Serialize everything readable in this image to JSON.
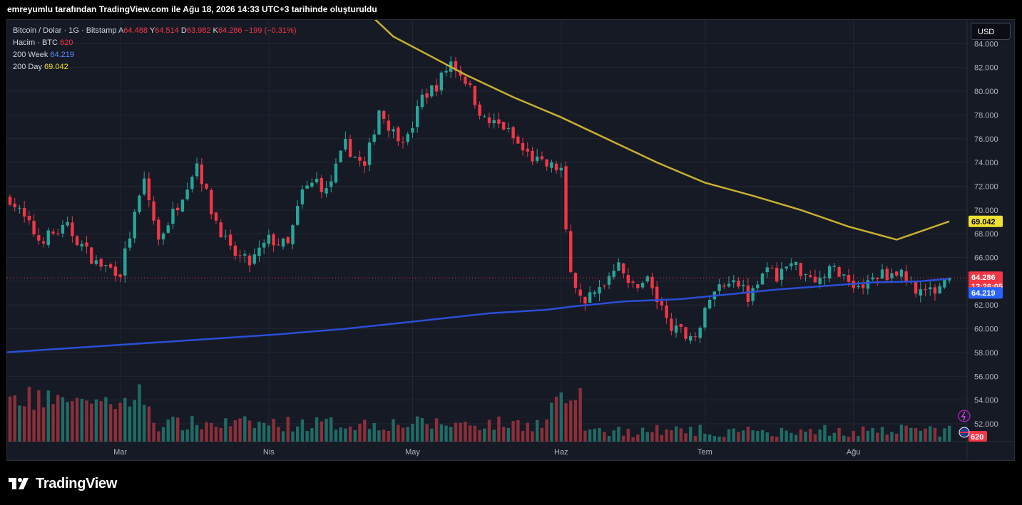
{
  "top_note": "emreyumlu tarafından TradingView.com ile Ağu 18, 2026 14:33 UTC+3 tarihinde oluşturuldu",
  "legend": {
    "symbol": "Bitcoin / Dolar · 1G · Bitstamp",
    "open_label": "A",
    "open": "64.488",
    "high_label": "Y",
    "high": "64.514",
    "low_label": "D",
    "low": "63.982",
    "close_label": "K",
    "close": "64.286",
    "change": "−199 (−0,31%)",
    "volume_label": "Hacim · BTC",
    "volume": "620",
    "ma200w_label": "200 Week",
    "ma200w": "64.219",
    "ma200d_label": "200 Day",
    "ma200d": "69.042"
  },
  "currency_button": "USD",
  "brand": {
    "name": "TradingView",
    "logo_icon": "tradingview-logo-icon"
  },
  "colors": {
    "up": "#26a69a",
    "down": "#f23645",
    "vol_up": "#1f6b65",
    "vol_down": "#8c2f39",
    "ma200w": "#2a4fd6",
    "ma200d": "#c8b030",
    "grid": "#232733",
    "text": "#b2b5be"
  },
  "price_tags": {
    "ma200d": "69.042",
    "last": "64.286",
    "countdown": "12:26:05",
    "ma200w": "64.219",
    "volume": "620"
  },
  "chart_data": {
    "type": "candlestick",
    "x_tick_labels": [
      "Mar",
      "Nis",
      "May",
      "Haz",
      "Tem",
      "Ağu"
    ],
    "y_tick_labels": [
      "52.000",
      "54.000",
      "56.000",
      "58.000",
      "60.000",
      "62.000",
      "64.000",
      "66.000",
      "68.000",
      "70.000",
      "72.000",
      "74.000",
      "76.000",
      "78.000",
      "80.000",
      "82.000",
      "84.000"
    ],
    "y_ticks": [
      52000,
      54000,
      56000,
      58000,
      60000,
      62000,
      64000,
      66000,
      68000,
      70000,
      72000,
      74000,
      76000,
      78000,
      80000,
      82000,
      84000
    ],
    "ylim": [
      50500,
      86000
    ],
    "x_ticks_index": [
      23,
      54,
      84,
      115,
      145,
      176
    ],
    "n_bars": 197,
    "close_anchors": [
      [
        0,
        71000
      ],
      [
        6,
        67500
      ],
      [
        12,
        68500
      ],
      [
        18,
        65500
      ],
      [
        23,
        64800
      ],
      [
        28,
        72500
      ],
      [
        31,
        67500
      ],
      [
        35,
        70500
      ],
      [
        39,
        74000
      ],
      [
        42,
        70000
      ],
      [
        46,
        66500
      ],
      [
        50,
        65500
      ],
      [
        54,
        67500
      ],
      [
        58,
        67000
      ],
      [
        61,
        71500
      ],
      [
        64,
        72500
      ],
      [
        66,
        71500
      ],
      [
        70,
        75500
      ],
      [
        74,
        73500
      ],
      [
        77,
        78500
      ],
      [
        80,
        76500
      ],
      [
        83,
        76000
      ],
      [
        86,
        79500
      ],
      [
        89,
        80500
      ],
      [
        92,
        82500
      ],
      [
        95,
        81000
      ],
      [
        99,
        77500
      ],
      [
        103,
        77000
      ],
      [
        107,
        75000
      ],
      [
        111,
        73800
      ],
      [
        115,
        73500
      ],
      [
        116,
        68000
      ],
      [
        117,
        65000
      ],
      [
        119,
        62500
      ],
      [
        122,
        62800
      ],
      [
        125,
        64500
      ],
      [
        127,
        66000
      ],
      [
        129,
        63500
      ],
      [
        133,
        64200
      ],
      [
        136,
        61500
      ],
      [
        139,
        59800
      ],
      [
        142,
        59500
      ],
      [
        144,
        60200
      ],
      [
        146,
        62500
      ],
      [
        148,
        63500
      ],
      [
        151,
        64500
      ],
      [
        154,
        62800
      ],
      [
        157,
        65000
      ],
      [
        160,
        64500
      ],
      [
        163,
        65500
      ],
      [
        166,
        64700
      ],
      [
        169,
        64200
      ],
      [
        172,
        65200
      ],
      [
        175,
        64000
      ],
      [
        178,
        63500
      ],
      [
        181,
        64500
      ],
      [
        185,
        64800
      ],
      [
        189,
        63500
      ],
      [
        192,
        63000
      ],
      [
        195,
        64200
      ],
      [
        196,
        64286
      ]
    ],
    "ma200w": [
      [
        -5,
        57900
      ],
      [
        10,
        58300
      ],
      [
        25,
        58700
      ],
      [
        40,
        59100
      ],
      [
        55,
        59500
      ],
      [
        70,
        60000
      ],
      [
        84,
        60600
      ],
      [
        100,
        61300
      ],
      [
        112,
        61600
      ],
      [
        118,
        61900
      ],
      [
        128,
        62300
      ],
      [
        140,
        62500
      ],
      [
        150,
        62900
      ],
      [
        160,
        63300
      ],
      [
        170,
        63600
      ],
      [
        180,
        63900
      ],
      [
        190,
        64000
      ],
      [
        196,
        64219
      ]
    ],
    "ma200d": [
      [
        71,
        88000
      ],
      [
        80,
        84600
      ],
      [
        88,
        82900
      ],
      [
        95,
        81400
      ],
      [
        105,
        79500
      ],
      [
        115,
        77800
      ],
      [
        125,
        75900
      ],
      [
        135,
        74000
      ],
      [
        145,
        72300
      ],
      [
        155,
        71200
      ],
      [
        165,
        70000
      ],
      [
        175,
        68600
      ],
      [
        185,
        67500
      ],
      [
        196,
        69042
      ]
    ],
    "volume_base": 620,
    "last_price": 64286
  }
}
